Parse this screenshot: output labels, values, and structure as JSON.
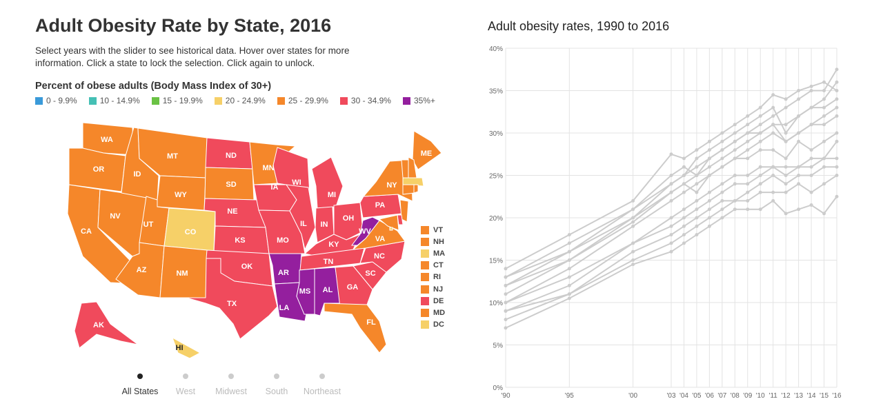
{
  "header": {
    "title": "Adult Obesity Rate by State, 2016",
    "subtitle": "Select years with the slider to see historical data. Hover over states for more information. Click a state to lock the selection. Click again to unlock."
  },
  "legend": {
    "title": "Percent of obese adults (Body Mass Index of 30+)",
    "items": [
      {
        "label": "0 - 9.9%",
        "color": "#3a9ad9"
      },
      {
        "label": "10 - 14.9%",
        "color": "#45c0b5"
      },
      {
        "label": "15 - 19.9%",
        "color": "#6ac244"
      },
      {
        "label": "20 - 24.9%",
        "color": "#f6d068"
      },
      {
        "label": "25 - 29.9%",
        "color": "#f5872a"
      },
      {
        "label": "30 - 34.9%",
        "color": "#f04a5c"
      },
      {
        "label": "35%+",
        "color": "#941f9e"
      }
    ]
  },
  "colors": {
    "yellow": "#f6d068",
    "orange": "#f5872a",
    "red": "#f04a5c",
    "purple": "#941f9e"
  },
  "states": {
    "WA": "orange",
    "OR": "orange",
    "CA": "orange",
    "NV": "orange",
    "ID": "orange",
    "MT": "orange",
    "WY": "orange",
    "UT": "orange",
    "CO": "yellow",
    "AZ": "orange",
    "NM": "orange",
    "ND": "red",
    "SD": "orange",
    "NE": "red",
    "KS": "red",
    "OK": "red",
    "TX": "red",
    "MN": "orange",
    "IA": "red",
    "MO": "red",
    "AR": "purple",
    "LA": "purple",
    "WI": "red",
    "IL": "red",
    "MI": "red",
    "IN": "red",
    "OH": "red",
    "KY": "red",
    "TN": "red",
    "MS": "purple",
    "AL": "purple",
    "GA": "red",
    "FL": "orange",
    "SC": "red",
    "NC": "red",
    "VA": "orange",
    "WV": "purple",
    "PA": "red",
    "NY": "orange",
    "ME": "orange",
    "AK": "red",
    "HI": "yellow",
    "VT": "orange",
    "NH": "orange",
    "MA": "yellow",
    "CT": "orange",
    "RI": "orange",
    "NJ": "orange",
    "DE": "red",
    "MD": "orange",
    "DC": "yellow"
  },
  "small_states": [
    "VT",
    "NH",
    "MA",
    "CT",
    "RI",
    "NJ",
    "DE",
    "MD",
    "DC"
  ],
  "regions": [
    {
      "label": "All States",
      "active": true
    },
    {
      "label": "West",
      "active": false
    },
    {
      "label": "Midwest",
      "active": false
    },
    {
      "label": "South",
      "active": false
    },
    {
      "label": "Northeast",
      "active": false
    }
  ],
  "chart_data": {
    "type": "line",
    "title": "Adult obesity rates, 1990 to 2016",
    "x": [
      1990,
      1995,
      2000,
      2003,
      2004,
      2005,
      2006,
      2007,
      2008,
      2009,
      2010,
      2011,
      2012,
      2013,
      2014,
      2015,
      2016
    ],
    "xtick_labels": [
      "'90",
      "'95",
      "'00",
      "'03",
      "'04",
      "'05",
      "'06",
      "'07",
      "'08",
      "'09",
      "'10",
      "'11",
      "'12",
      "'13",
      "'14",
      "'15",
      "'16"
    ],
    "ylim": [
      0,
      40
    ],
    "yticks": [
      "0%",
      "5%",
      "10%",
      "15%",
      "20%",
      "25%",
      "30%",
      "35%",
      "40%"
    ],
    "grid": true,
    "line_color": "#cccccc",
    "series": [
      {
        "values": [
          7,
          10.5,
          14.5,
          16,
          17,
          18,
          19,
          20,
          21,
          21,
          21,
          22,
          20.5,
          21,
          21.5,
          20.5,
          22.5
        ]
      },
      {
        "values": [
          12,
          16,
          20,
          24,
          25,
          26,
          27,
          28,
          29,
          30,
          31,
          32,
          33,
          34,
          35,
          35,
          37.5
        ]
      },
      {
        "values": [
          10,
          14,
          19,
          22,
          23,
          24,
          25,
          26,
          27,
          28,
          29,
          30,
          29,
          30,
          31,
          32,
          33
        ]
      },
      {
        "values": [
          11,
          15,
          19.5,
          23,
          24,
          25,
          26,
          27,
          28,
          29,
          30,
          31,
          31,
          32,
          33,
          33,
          34
        ]
      },
      {
        "values": [
          14,
          18,
          22,
          27.5,
          27,
          28,
          29,
          30,
          31,
          32,
          33,
          34.5,
          34,
          35,
          35.5,
          36,
          35
        ]
      },
      {
        "values": [
          9,
          12,
          17,
          20,
          21,
          22,
          23,
          24,
          25,
          25,
          26,
          26,
          25,
          26,
          26,
          27,
          27
        ]
      },
      {
        "values": [
          13,
          17,
          21,
          25,
          26,
          25,
          27,
          28,
          29,
          30,
          30,
          31,
          29,
          30,
          31,
          31,
          32
        ]
      },
      {
        "values": [
          8,
          11,
          16,
          18,
          19,
          20,
          21,
          22,
          22,
          23,
          24,
          25,
          24,
          25,
          25,
          26,
          26
        ]
      },
      {
        "values": [
          12,
          15,
          20,
          23,
          24,
          23,
          25,
          26,
          27,
          27,
          28,
          28,
          27,
          29,
          28,
          29,
          30
        ]
      },
      {
        "values": [
          10,
          13,
          17,
          19,
          20,
          21,
          22,
          23,
          24,
          24,
          25,
          26,
          26,
          26,
          27,
          27,
          29
        ]
      },
      {
        "values": [
          13,
          16,
          21,
          24,
          25,
          27,
          28,
          29,
          30,
          31,
          32,
          33,
          30,
          32,
          33,
          34,
          36
        ]
      },
      {
        "values": [
          9,
          11,
          15,
          17,
          18,
          19,
          20,
          21,
          22,
          22,
          23,
          23,
          23,
          24,
          23,
          24,
          25
        ]
      }
    ]
  }
}
